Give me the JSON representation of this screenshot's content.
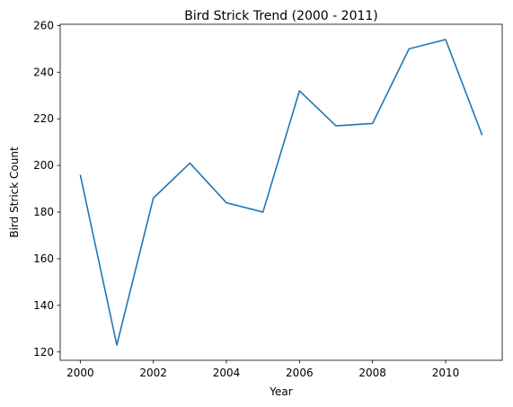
{
  "chart_data": {
    "type": "line",
    "title": "Bird Strick Trend (2000 - 2011)",
    "xlabel": "Year",
    "ylabel": "Bird Strick Count",
    "x": [
      2000,
      2001,
      2002,
      2003,
      2004,
      2005,
      2006,
      2007,
      2008,
      2009,
      2010,
      2011
    ],
    "series": [
      {
        "values": [
          196,
          123,
          186,
          201,
          184,
          180,
          232,
          217,
          218,
          250,
          254,
          213
        ]
      }
    ],
    "xlim": [
      1999.45,
      2011.55
    ],
    "ylim": [
      116.45,
      260.55
    ],
    "xticks": [
      2000,
      2002,
      2004,
      2006,
      2008,
      2010
    ],
    "yticks": [
      120,
      140,
      160,
      180,
      200,
      220,
      240,
      260
    ],
    "grid": false,
    "line_color": "#1f77b4"
  }
}
